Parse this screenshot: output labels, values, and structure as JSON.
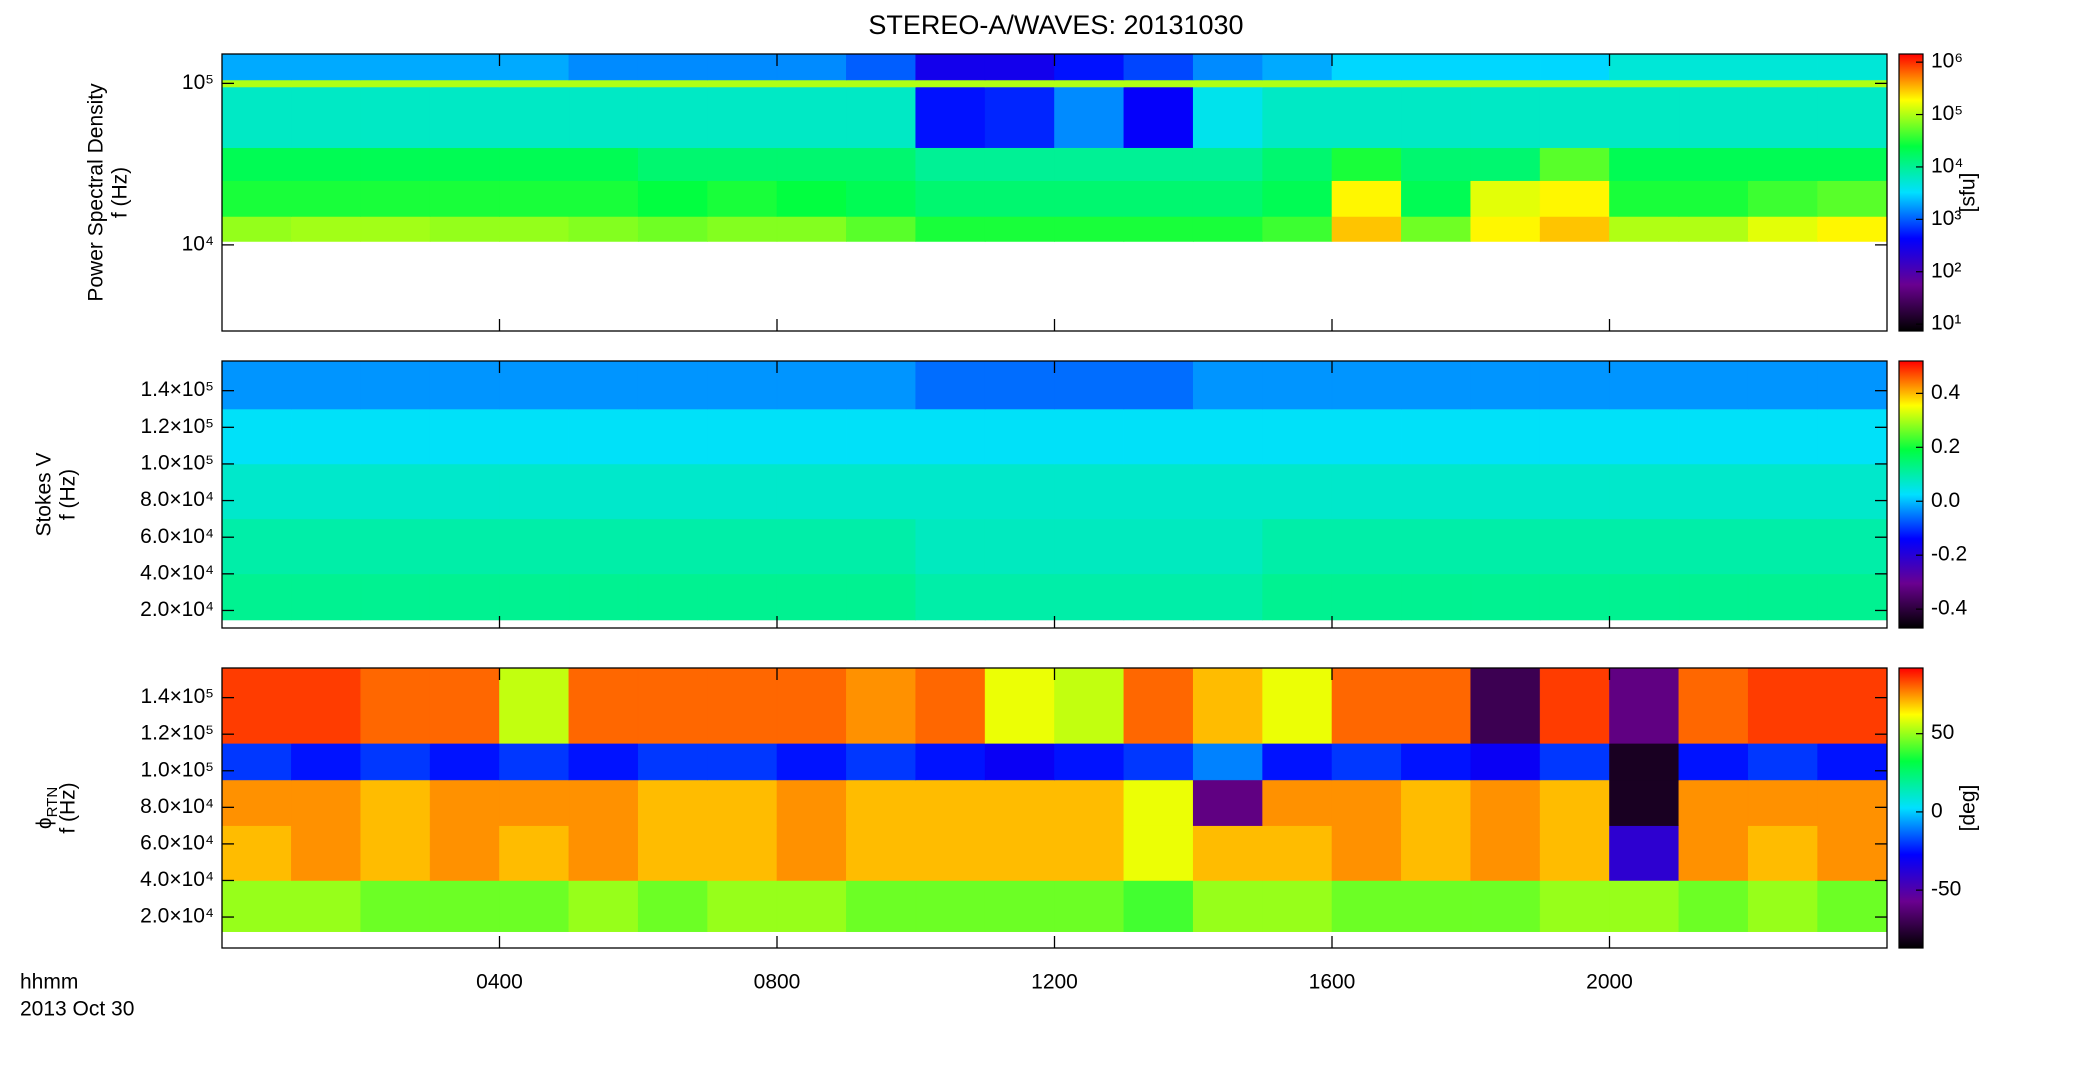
{
  "title": "STEREO-A/WAVES: 20131030",
  "time_axis": {
    "label": "hhmm",
    "date": "2013 Oct 30",
    "xlim": [
      0,
      24
    ],
    "xticks": [
      {
        "value": 4,
        "label": "0400"
      },
      {
        "value": 8,
        "label": "0800"
      },
      {
        "value": 12,
        "label": "1200"
      },
      {
        "value": 16,
        "label": "1600"
      },
      {
        "value": 20,
        "label": "2000"
      }
    ]
  },
  "colormap": [
    "#000000",
    "#6a0090",
    "#0000ff",
    "#00e0ff",
    "#00ff40",
    "#ffff00",
    "#ff0000"
  ],
  "chart_data": [
    {
      "type": "heatmap",
      "ylabel_title": "Power Spectral Density",
      "ylabel": "f (Hz)",
      "log_y": true,
      "ylim": [
        2930,
        152000
      ],
      "yticks": [
        {
          "value": 10000,
          "label": "10⁴"
        },
        {
          "value": 100000,
          "label": "10⁵"
        }
      ],
      "colorbar_label": "[sfu]",
      "log_color": true,
      "clim": [
        7.4,
        1430000
      ],
      "cticks": [
        {
          "value": 10,
          "label": "10¹"
        },
        {
          "value": 100,
          "label": "10²"
        },
        {
          "value": 1000,
          "label": "10³"
        },
        {
          "value": 10000,
          "label": "10⁴"
        },
        {
          "value": 100000,
          "label": "10⁵"
        },
        {
          "value": 1000000,
          "label": "10⁶"
        }
      ],
      "x": [
        0,
        1,
        2,
        3,
        4,
        5,
        6,
        7,
        8,
        9,
        10,
        11,
        12,
        13,
        14,
        15,
        16,
        17,
        18,
        19,
        20,
        21,
        22,
        23,
        24
      ],
      "y": [
        10500,
        15000,
        25000,
        40000,
        95000,
        105000,
        152000
      ],
      "z": [
        [
          80000,
          90000,
          90000,
          80000,
          80000,
          70000,
          60000,
          70000,
          70000,
          50000,
          30000,
          30000,
          30000,
          30000,
          30000,
          40000,
          300000,
          60000,
          200000,
          300000,
          100000,
          100000,
          150000,
          200000
        ],
        [
          30000,
          30000,
          30000,
          30000,
          30000,
          30000,
          25000,
          30000,
          25000,
          20000,
          15000,
          15000,
          15000,
          15000,
          15000,
          20000,
          200000,
          20000,
          150000,
          200000,
          30000,
          30000,
          40000,
          50000
        ],
        [
          20000,
          20000,
          20000,
          20000,
          20000,
          20000,
          15000,
          15000,
          15000,
          15000,
          10000,
          10000,
          10000,
          10000,
          10000,
          15000,
          30000,
          15000,
          15000,
          50000,
          20000,
          20000,
          20000,
          20000
        ],
        [
          6000,
          6000,
          6000,
          6000,
          6000,
          6000,
          6000,
          6000,
          6000,
          6000,
          500,
          600,
          1500,
          400,
          4000,
          6000,
          6000,
          6000,
          6000,
          6000,
          6000,
          6000,
          6000,
          6000
        ],
        [
          100000,
          100000,
          100000,
          100000,
          100000,
          100000,
          100000,
          100000,
          100000,
          100000,
          100000,
          100000,
          100000,
          100000,
          100000,
          100000,
          100000,
          100000,
          100000,
          100000,
          100000,
          100000,
          100000,
          100000
        ],
        [
          2000,
          2000,
          2000,
          2000,
          2000,
          1500,
          1500,
          1500,
          1500,
          1000,
          300,
          300,
          500,
          800,
          1500,
          2000,
          3000,
          3000,
          3000,
          3000,
          5000,
          5000,
          5000,
          5000
        ]
      ]
    },
    {
      "type": "heatmap",
      "ylabel_title": "Stokes V",
      "ylabel": "f (Hz)",
      "log_y": false,
      "ylim": [
        10430,
        156200
      ],
      "yticks": [
        {
          "value": 20000,
          "label": "2.0×10⁴"
        },
        {
          "value": 40000,
          "label": "4.0×10⁴"
        },
        {
          "value": 60000,
          "label": "6.0×10⁴"
        },
        {
          "value": 80000,
          "label": "8.0×10⁴"
        },
        {
          "value": 100000,
          "label": "1.0×10⁵"
        },
        {
          "value": 120000,
          "label": "1.2×10⁵"
        },
        {
          "value": 140000,
          "label": "1.4×10⁵"
        }
      ],
      "log_color": false,
      "clim": [
        -0.47,
        0.52
      ],
      "cticks": [
        -0.4,
        -0.2,
        {
          "value": 0,
          "label": "0.0"
        },
        0.2,
        0.4
      ],
      "x": [
        0,
        1,
        2,
        3,
        4,
        5,
        6,
        7,
        8,
        9,
        10,
        11,
        12,
        13,
        14,
        15,
        16,
        17,
        18,
        19,
        20,
        21,
        22,
        23,
        24
      ],
      "y": [
        14800,
        40000,
        70000,
        100000,
        130000,
        156200
      ],
      "z": [
        [
          0.12,
          0.12,
          0.12,
          0.12,
          0.12,
          0.12,
          0.12,
          0.12,
          0.12,
          0.12,
          0.1,
          0.1,
          0.1,
          0.1,
          0.1,
          0.12,
          0.12,
          0.12,
          0.12,
          0.12,
          0.12,
          0.12,
          0.12,
          0.12
        ],
        [
          0.1,
          0.1,
          0.1,
          0.1,
          0.1,
          0.1,
          0.1,
          0.1,
          0.1,
          0.1,
          0.08,
          0.08,
          0.08,
          0.08,
          0.08,
          0.1,
          0.1,
          0.1,
          0.1,
          0.1,
          0.1,
          0.1,
          0.1,
          0.1
        ],
        [
          0.07,
          0.07,
          0.07,
          0.07,
          0.07,
          0.07,
          0.07,
          0.07,
          0.07,
          0.07,
          0.07,
          0.07,
          0.07,
          0.07,
          0.07,
          0.07,
          0.07,
          0.07,
          0.07,
          0.07,
          0.07,
          0.07,
          0.07,
          0.07
        ],
        [
          0.03,
          0.03,
          0.03,
          0.03,
          0.03,
          0.03,
          0.03,
          0.03,
          0.03,
          0.03,
          0.03,
          0.03,
          0.03,
          0.03,
          0.03,
          0.03,
          0.03,
          0.03,
          0.03,
          0.03,
          0.03,
          0.03,
          0.03,
          0.03
        ],
        [
          -0.03,
          -0.03,
          -0.03,
          -0.03,
          -0.03,
          -0.03,
          -0.03,
          -0.03,
          -0.03,
          -0.03,
          -0.06,
          -0.06,
          -0.06,
          -0.06,
          -0.03,
          -0.03,
          -0.03,
          -0.03,
          -0.03,
          -0.03,
          -0.03,
          -0.03,
          -0.03,
          -0.03
        ]
      ]
    },
    {
      "type": "heatmap",
      "ylabel_symbol": "ϕ",
      "ylabel_subscript": "RTN",
      "ylabel": "f (Hz)",
      "log_y": false,
      "ylim": [
        3070,
        156200
      ],
      "yticks": [
        {
          "value": 20000,
          "label": "2.0×10⁴"
        },
        {
          "value": 40000,
          "label": "4.0×10⁴"
        },
        {
          "value": 60000,
          "label": "6.0×10⁴"
        },
        {
          "value": 80000,
          "label": "8.0×10⁴"
        },
        {
          "value": 100000,
          "label": "1.0×10⁵"
        },
        {
          "value": 120000,
          "label": "1.2×10⁵"
        },
        {
          "value": 140000,
          "label": "1.4×10⁵"
        }
      ],
      "colorbar_label": "[deg]",
      "log_color": false,
      "clim": [
        -87,
        92
      ],
      "cticks": [
        -50,
        0,
        50
      ],
      "x": [
        0,
        1,
        2,
        3,
        4,
        5,
        6,
        7,
        8,
        9,
        10,
        11,
        12,
        13,
        14,
        15,
        16,
        17,
        18,
        19,
        20,
        21,
        22,
        23,
        24
      ],
      "y": [
        12000,
        40000,
        70000,
        95000,
        115000,
        156200
      ],
      "z": [
        [
          50,
          50,
          45,
          45,
          45,
          50,
          45,
          50,
          50,
          45,
          45,
          45,
          45,
          40,
          50,
          50,
          45,
          45,
          45,
          50,
          50,
          45,
          50,
          45
        ],
        [
          70,
          75,
          70,
          75,
          70,
          75,
          70,
          70,
          75,
          70,
          70,
          70,
          70,
          60,
          70,
          70,
          75,
          70,
          75,
          70,
          -40,
          75,
          70,
          75
        ],
        [
          75,
          75,
          70,
          75,
          75,
          75,
          70,
          70,
          75,
          70,
          70,
          70,
          70,
          60,
          -60,
          75,
          75,
          70,
          75,
          70,
          -80,
          75,
          75,
          75
        ],
        [
          -20,
          -25,
          -20,
          -25,
          -20,
          -25,
          -20,
          -20,
          -25,
          -20,
          -25,
          -30,
          -25,
          -20,
          -10,
          -25,
          -20,
          -25,
          -30,
          -20,
          -80,
          -25,
          -20,
          -25
        ],
        [
          85,
          85,
          80,
          80,
          55,
          80,
          80,
          80,
          80,
          75,
          80,
          60,
          55,
          80,
          70,
          60,
          80,
          80,
          -70,
          85,
          -60,
          80,
          85,
          85
        ]
      ]
    }
  ]
}
